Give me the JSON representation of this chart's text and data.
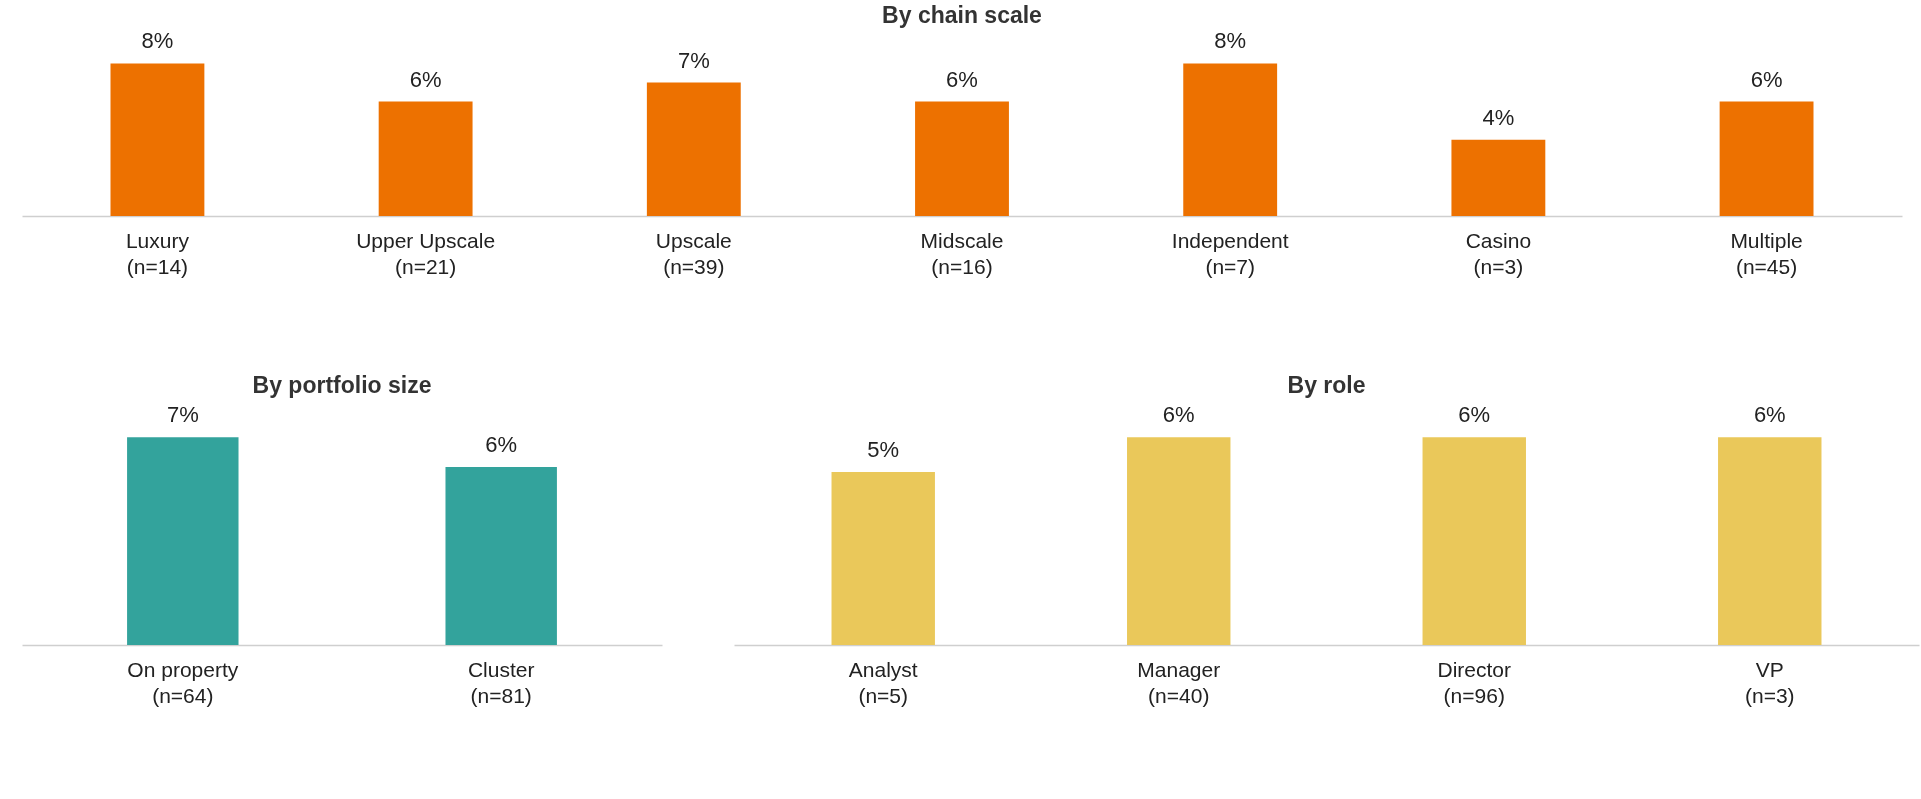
{
  "chart_data": [
    {
      "type": "bar",
      "title": "By chain scale",
      "categories": [
        "Luxury\n(n=14)",
        "Upper Upscale\n(n=21)",
        "Upscale\n(n=39)",
        "Midscale\n(n=16)",
        "Independent\n(n=7)",
        "Casino\n(n=3)",
        "Multiple\n(n=45)"
      ],
      "values": [
        8,
        6,
        7,
        6,
        8,
        4,
        6
      ],
      "color": "#ed7100",
      "value_labels": [
        "8%",
        "6%",
        "7%",
        "6%",
        "8%",
        "4%",
        "6%"
      ]
    },
    {
      "type": "bar",
      "title": "By portfolio size",
      "categories": [
        "On property\n(n=64)",
        "Cluster\n(n=81)"
      ],
      "values": [
        7,
        6
      ],
      "color": "#33a39c",
      "value_labels": [
        "7%",
        "6%"
      ]
    },
    {
      "type": "bar",
      "title": "By role",
      "categories": [
        "Analyst\n(n=5)",
        "Manager\n(n=40)",
        "Director\n(n=96)",
        "VP\n(n=3)"
      ],
      "values": [
        5,
        6,
        6,
        6
      ],
      "color": "#eac85a",
      "value_labels": [
        "5%",
        "6%",
        "6%",
        "6%"
      ]
    }
  ]
}
